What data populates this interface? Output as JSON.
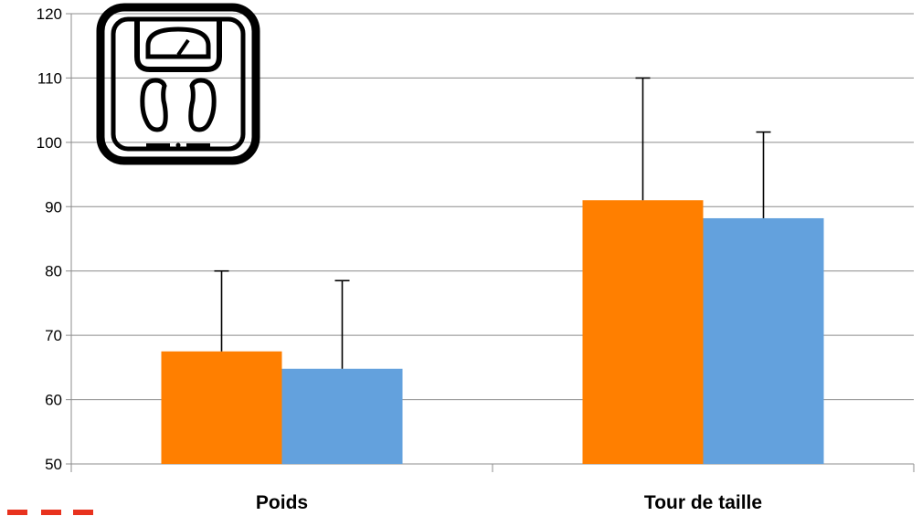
{
  "chart_data": {
    "type": "bar",
    "categories": [
      "Poids",
      "Tour de taille"
    ],
    "series": [
      {
        "color": "#FF7F00",
        "values": [
          67.5,
          91
        ],
        "error_upper": [
          80,
          110
        ]
      },
      {
        "color": "#63A1DD",
        "values": [
          64.8,
          88.2
        ],
        "error_upper": [
          78.5,
          101.6
        ]
      }
    ],
    "ylim": [
      50,
      120
    ],
    "yticks": [
      50,
      60,
      70,
      80,
      90,
      100,
      110,
      120
    ],
    "grid": true,
    "title": "",
    "xlabel": "",
    "ylabel": ""
  },
  "icons": {
    "scale": "bathroom-scale-icon",
    "legend_fragment": "red-dashed-line-icon"
  },
  "colors": {
    "grid": "#8c8c8c",
    "error_bar": "#000000",
    "legend_dash": "#E8321E"
  }
}
